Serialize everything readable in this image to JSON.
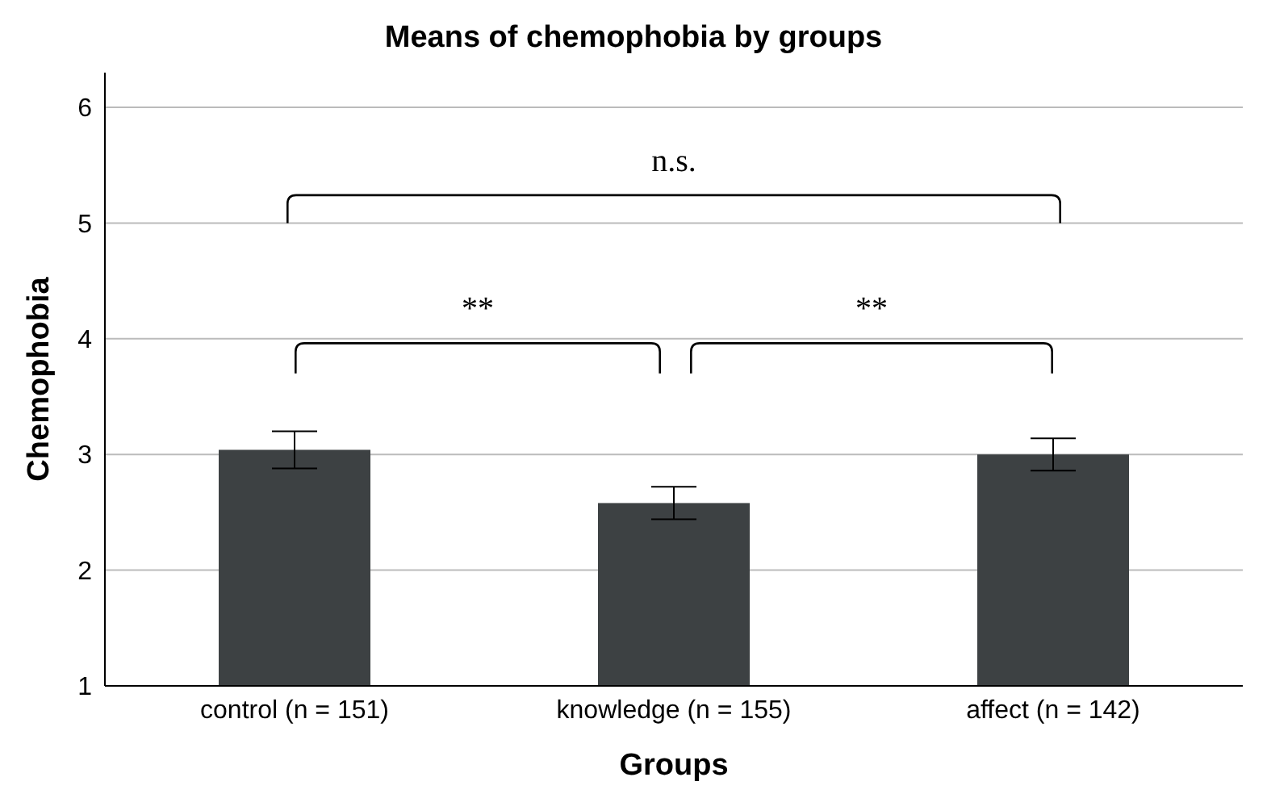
{
  "chart_data": {
    "type": "bar",
    "title": "Means of chemophobia by groups",
    "xlabel": "Groups",
    "ylabel": "Chemophobia",
    "categories": [
      "control (n = 151)",
      "knowledge (n = 155)",
      "affect (n = 142)"
    ],
    "values": [
      3.04,
      2.58,
      3.0
    ],
    "errors": [
      0.16,
      0.14,
      0.14
    ],
    "color": "#3d4143",
    "ylim": [
      1,
      6.3
    ],
    "yticks": [
      1,
      2,
      3,
      4,
      5,
      6
    ],
    "grid": "y",
    "annotations": [
      "n.s.",
      "**",
      "**"
    ]
  }
}
